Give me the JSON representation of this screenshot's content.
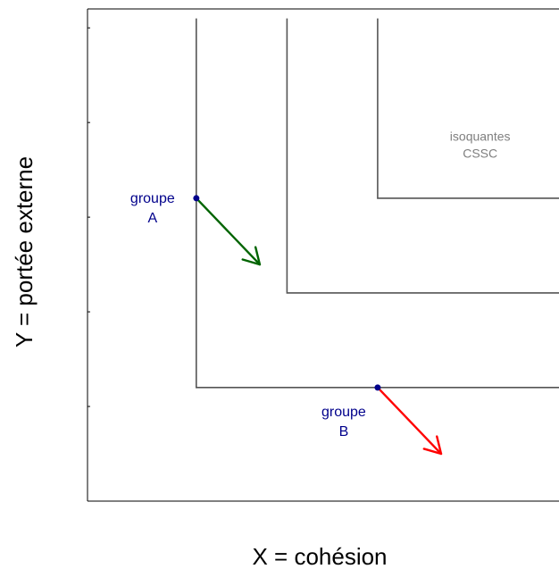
{
  "chart_data": {
    "type": "line",
    "xlabel": "X = cohésion",
    "ylabel": "Y = portée externe",
    "xlim": [
      0,
      5.2
    ],
    "ylim": [
      0,
      5.2
    ],
    "grid": false,
    "ticks_labeled": false,
    "isoquants": [
      {
        "corner": [
          1.2,
          1.2
        ],
        "points": [
          [
            1.2,
            5.1
          ],
          [
            1.2,
            1.2
          ],
          [
            5.2,
            1.2
          ]
        ]
      },
      {
        "corner": [
          2.2,
          2.2
        ],
        "points": [
          [
            2.2,
            5.1
          ],
          [
            2.2,
            2.2
          ],
          [
            5.2,
            2.2
          ]
        ]
      },
      {
        "corner": [
          3.2,
          3.2
        ],
        "points": [
          [
            3.2,
            5.1
          ],
          [
            3.2,
            3.2
          ],
          [
            5.2,
            3.2
          ]
        ]
      }
    ],
    "isoquant_label": "isoquantes\nCSSC",
    "groups": [
      {
        "name": "groupe\nA",
        "point": [
          1.2,
          3.2
        ],
        "arrow_to": [
          1.9,
          2.5
        ]
      },
      {
        "name": "groupe\nB",
        "point": [
          3.2,
          1.2
        ],
        "arrow_to": [
          3.9,
          0.5
        ]
      }
    ],
    "colors": {
      "isoquant": "#555555",
      "isoquant_label": "#7f7f7f",
      "group_text": "#00008b",
      "group_point": "#00008b",
      "arrow_A": "#006400",
      "arrow_B": "#ff0000",
      "frame": "#000000"
    }
  }
}
